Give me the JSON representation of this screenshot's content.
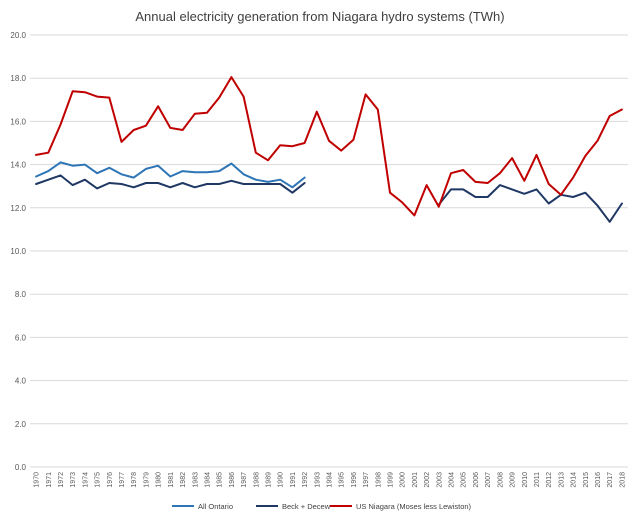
{
  "chart_data": {
    "type": "line",
    "title": "Annual electricity generation from Niagara hydro systems (TWh)",
    "xlabel": "",
    "ylabel": "",
    "ylim": [
      0,
      20
    ],
    "yticks": [
      "0.0",
      "2.0",
      "4.0",
      "6.0",
      "8.0",
      "10.0",
      "12.0",
      "14.0",
      "16.0",
      "18.0",
      "20.0"
    ],
    "grid": true,
    "legend_position": "bottom",
    "categories": [
      "1970",
      "1971",
      "1972",
      "1973",
      "1974",
      "1975",
      "1976",
      "1977",
      "1978",
      "1979",
      "1980",
      "1981",
      "1982",
      "1983",
      "1984",
      "1985",
      "1986",
      "1987",
      "1988",
      "1989",
      "1990",
      "1991",
      "1992",
      "1993",
      "1994",
      "1995",
      "1996",
      "1997",
      "1998",
      "1999",
      "2000",
      "2001",
      "2002",
      "2003",
      "2004",
      "2005",
      "2006",
      "2007",
      "2008",
      "2009",
      "2010",
      "2011",
      "2012",
      "2013",
      "2014",
      "2015",
      "2016",
      "2017",
      "2018"
    ],
    "series": [
      {
        "name": "All Ontario",
        "color": "#2e75b6",
        "values": [
          13.45,
          13.7,
          14.1,
          13.95,
          14.0,
          13.6,
          13.85,
          13.55,
          13.4,
          13.8,
          13.95,
          13.45,
          13.7,
          13.65,
          13.65,
          13.7,
          14.05,
          13.55,
          13.3,
          13.2,
          13.3,
          12.95,
          13.4,
          null,
          null,
          null,
          null,
          null,
          null,
          null,
          null,
          null,
          null,
          null,
          null,
          null,
          null,
          null,
          null,
          null,
          null,
          null,
          null,
          null,
          null,
          null,
          null,
          null,
          null
        ]
      },
      {
        "name": "Beck + Decew",
        "color": "#1f3864",
        "values": [
          13.1,
          13.3,
          13.5,
          13.05,
          13.3,
          12.9,
          13.15,
          13.1,
          12.95,
          13.15,
          13.15,
          12.95,
          13.15,
          12.95,
          13.1,
          13.1,
          13.25,
          13.1,
          13.1,
          13.1,
          13.1,
          12.7,
          13.15,
          null,
          null,
          null,
          null,
          null,
          null,
          null,
          null,
          null,
          null,
          12.15,
          12.85,
          12.85,
          12.5,
          12.5,
          13.05,
          12.85,
          12.65,
          12.85,
          12.2,
          12.6,
          12.5,
          12.7,
          12.1,
          11.35,
          12.2
        ]
      },
      {
        "name": "US Niagara (Moses less Lewiston)",
        "color": "#c00000",
        "values": [
          14.45,
          14.55,
          15.85,
          17.4,
          17.35,
          17.15,
          17.1,
          15.05,
          15.6,
          15.8,
          16.7,
          15.7,
          15.6,
          16.35,
          16.4,
          17.1,
          18.05,
          17.15,
          14.55,
          14.2,
          14.9,
          14.85,
          15.0,
          16.45,
          15.1,
          14.65,
          15.15,
          17.25,
          16.55,
          12.7,
          12.25,
          11.65,
          13.05,
          12.05,
          13.6,
          13.75,
          13.2,
          13.15,
          13.6,
          14.3,
          13.25,
          14.45,
          13.1,
          12.6,
          13.4,
          14.4,
          15.1,
          16.25,
          16.55
        ]
      }
    ]
  }
}
